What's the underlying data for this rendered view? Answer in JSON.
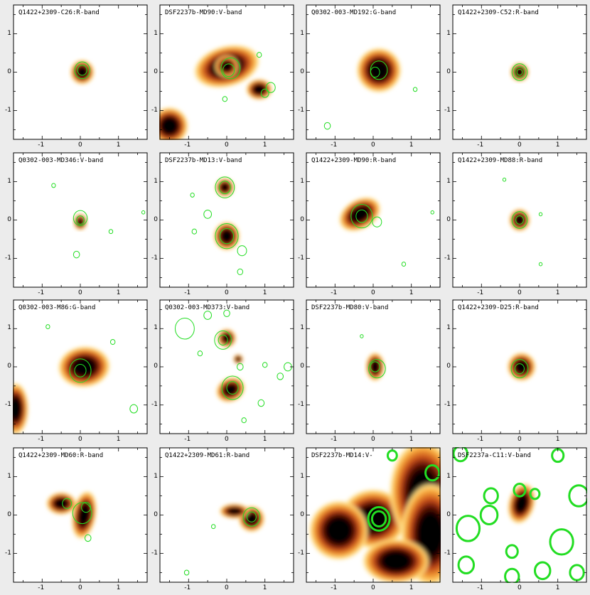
{
  "figure": {
    "background": "#ececec",
    "frame_color": "#000000",
    "contour_color": "#22dd22",
    "colormap": [
      "#ffffff",
      "#fff6c4",
      "#ffd97a",
      "#f6a438",
      "#c8501a",
      "#5a0e06",
      "#000000"
    ]
  },
  "panels": [
    {
      "title": "Q1422+2309-C26:R-band"
    },
    {
      "title": "DSF2237b-MD90:V-band"
    },
    {
      "title": "Q0302-003-MD192:G-band"
    },
    {
      "title": "Q1422+2309-C52:R-band"
    },
    {
      "title": "Q0302-003-MD346:V-band"
    },
    {
      "title": "DSF2237b-MD13:V-band"
    },
    {
      "title": "Q1422+2309-MD90:R-band"
    },
    {
      "title": "Q1422+2309-MD88:R-band"
    },
    {
      "title": "Q0302-003-M86:G-band"
    },
    {
      "title": "Q0302-003-MD373:V-band"
    },
    {
      "title": "DSF2237b-MD80:V-band"
    },
    {
      "title": "Q1422+2309-D25:R-band"
    },
    {
      "title": "Q1422+2309-MD60:R-band"
    },
    {
      "title": "Q1422+2309-MD61:R-band"
    },
    {
      "title": "DSF2237b-MD14:V-"
    },
    {
      "title": "DSF2237a-C11:V-band"
    }
  ],
  "axes": {
    "x_ticks": [
      "-1",
      "0",
      "1"
    ],
    "y_ticks": [
      "1",
      "0",
      "-1"
    ]
  }
}
